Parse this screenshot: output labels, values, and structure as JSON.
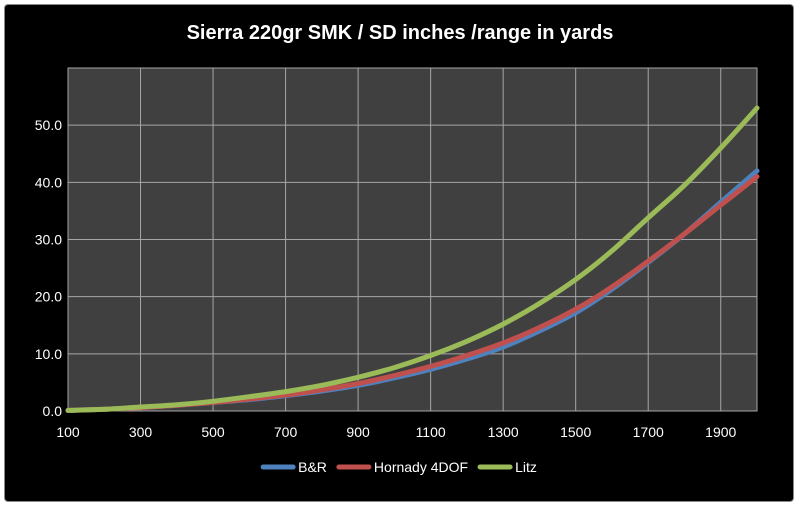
{
  "chart_data": {
    "type": "line",
    "title": "Sierra 220gr SMK / SD inches /range in yards",
    "xlabel": "",
    "ylabel": "",
    "x": [
      100,
      200,
      300,
      400,
      500,
      600,
      700,
      800,
      900,
      1000,
      1100,
      1200,
      1300,
      1400,
      1500,
      1600,
      1700,
      1800,
      1900,
      2000
    ],
    "xlim": [
      100,
      2000
    ],
    "ylim": [
      0,
      60
    ],
    "x_ticks": [
      "100",
      "300",
      "500",
      "700",
      "900",
      "1100",
      "1300",
      "1500",
      "1700",
      "1900"
    ],
    "x_tick_values": [
      100,
      300,
      500,
      700,
      900,
      1100,
      1300,
      1500,
      1700,
      1900
    ],
    "y_ticks": [
      "0.0",
      "10.0",
      "20.0",
      "30.0",
      "40.0",
      "50.0"
    ],
    "y_tick_values": [
      0,
      10,
      20,
      30,
      40,
      50
    ],
    "grid": true,
    "legend_position": "bottom",
    "series": [
      {
        "name": "B&R",
        "color": "#4f81bd",
        "values": [
          0.1,
          0.3,
          0.6,
          1.0,
          1.5,
          2.0,
          2.7,
          3.5,
          4.5,
          5.8,
          7.3,
          9.1,
          11.2,
          14.0,
          17.2,
          21.3,
          26.0,
          31.0,
          36.5,
          42.0
        ]
      },
      {
        "name": "Hornady 4DOF",
        "color": "#c0504d",
        "values": [
          0.1,
          0.3,
          0.6,
          1.0,
          1.5,
          2.1,
          2.8,
          3.7,
          4.8,
          6.2,
          7.8,
          9.7,
          11.9,
          14.6,
          17.8,
          21.7,
          26.2,
          31.0,
          36.0,
          41.0
        ]
      },
      {
        "name": "Litz",
        "color": "#9bbb59",
        "values": [
          0.1,
          0.3,
          0.7,
          1.1,
          1.7,
          2.5,
          3.4,
          4.5,
          5.9,
          7.6,
          9.7,
          12.2,
          15.2,
          18.8,
          23.0,
          28.0,
          33.8,
          39.5,
          46.0,
          53.0
        ]
      }
    ]
  }
}
